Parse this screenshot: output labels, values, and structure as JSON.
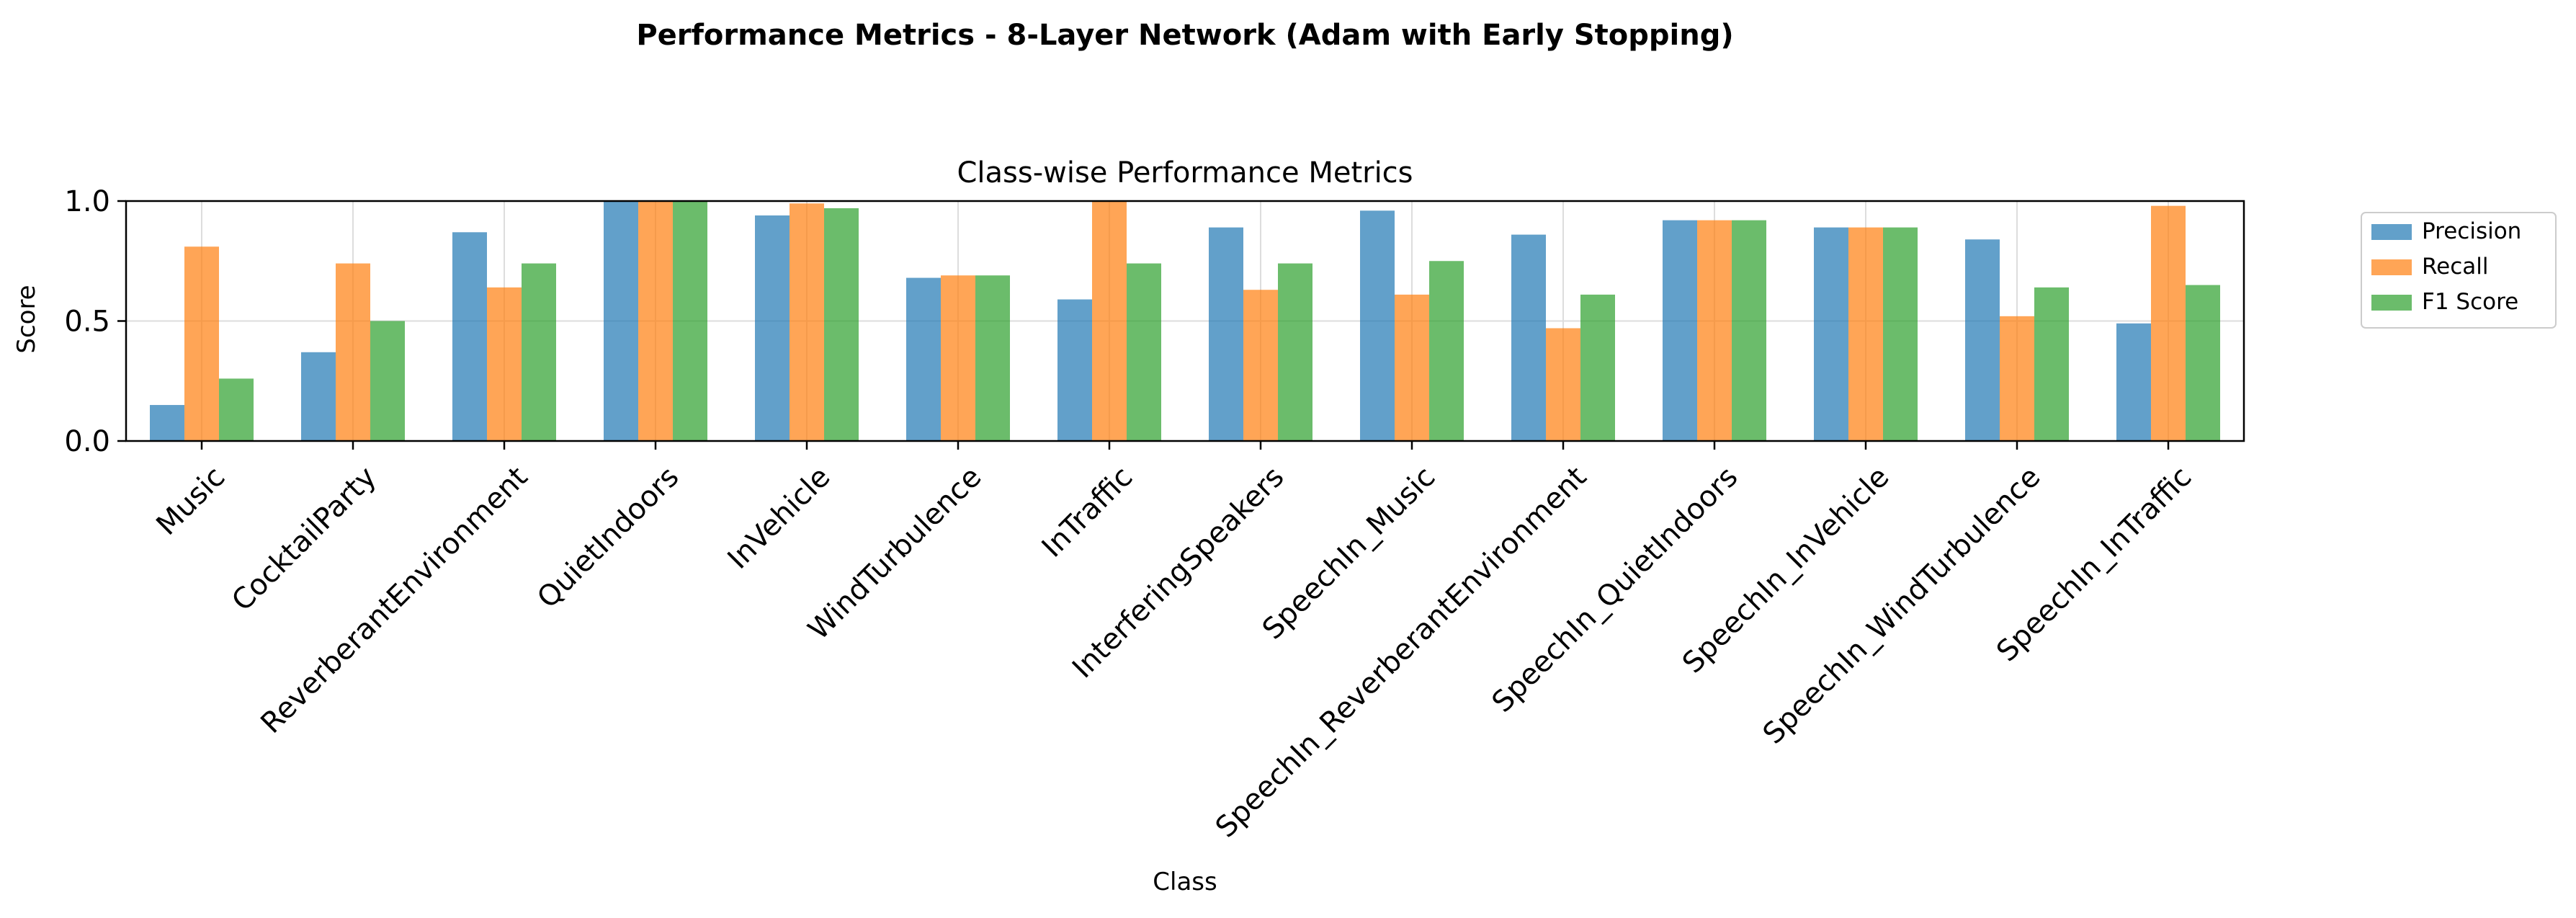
{
  "chart_data": {
    "type": "bar",
    "suptitle": "Performance Metrics - 8-Layer Network (Adam with Early Stopping)",
    "title": "Class-wise Performance Metrics",
    "xlabel": "Class",
    "ylabel": "Score",
    "ylim": [
      0,
      1.0
    ],
    "yticks": [
      "0.0",
      "0.5",
      "1.0"
    ],
    "grid": true,
    "legend_position": "outside-right",
    "categories": [
      "Music",
      "CocktailParty",
      "ReverberantEnvironment",
      "QuietIndoors",
      "InVehicle",
      "WindTurbulence",
      "InTraffic",
      "InterferingSpeakers",
      "SpeechIn_Music",
      "SpeechIn_ReverberantEnvironment",
      "SpeechIn_QuietIndoors",
      "SpeechIn_InVehicle",
      "SpeechIn_WindTurbulence",
      "SpeechIn_InTraffic"
    ],
    "series": [
      {
        "name": "Precision",
        "color": "#1f77b4",
        "values": [
          0.15,
          0.37,
          0.87,
          1.0,
          0.94,
          0.68,
          0.59,
          0.89,
          0.96,
          0.86,
          0.92,
          0.89,
          0.84,
          0.49
        ]
      },
      {
        "name": "Recall",
        "color": "#ff7f0e",
        "values": [
          0.81,
          0.74,
          0.64,
          1.0,
          0.99,
          0.69,
          1.0,
          0.63,
          0.61,
          0.47,
          0.92,
          0.89,
          0.52,
          0.98
        ]
      },
      {
        "name": "F1 Score",
        "color": "#2ca02c",
        "values": [
          0.26,
          0.5,
          0.74,
          1.0,
          0.97,
          0.69,
          0.74,
          0.74,
          0.75,
          0.61,
          0.92,
          0.89,
          0.64,
          0.65
        ]
      }
    ]
  }
}
